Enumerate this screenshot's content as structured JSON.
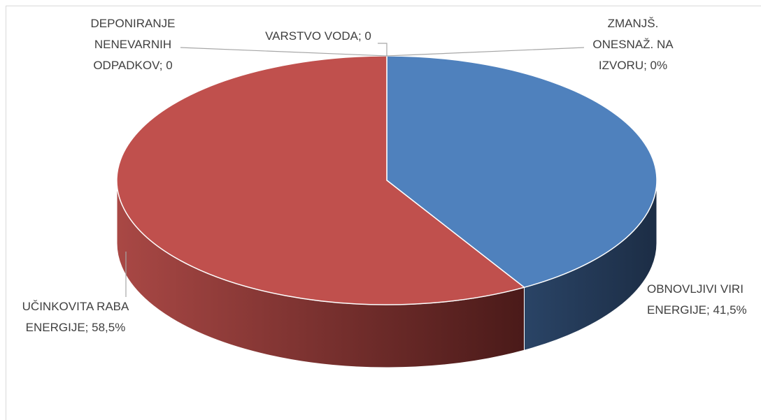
{
  "chart_data": {
    "type": "pie3d",
    "values": [
      0,
      41.5,
      58.5,
      0,
      0
    ],
    "value_labels": [
      [
        "ZMANJŠ.",
        "ONESNAŽ. NA",
        "IZVORU; 0%"
      ],
      [
        "OBNOVLJIVI VIRI",
        "ENERGIJE; 41,5%"
      ],
      [
        "UČINKOVITA RABA",
        "ENERGIJE; 58,5%"
      ],
      [
        "DEPONIRANJE",
        "NENEVARNIH",
        "ODPADKOV; 0"
      ],
      [
        "VARSTVO VODA; 0"
      ]
    ],
    "colors": [
      "#9bbb59",
      "#4f81bd",
      "#c0504d",
      "#8064a2",
      "#4bacc6"
    ]
  }
}
